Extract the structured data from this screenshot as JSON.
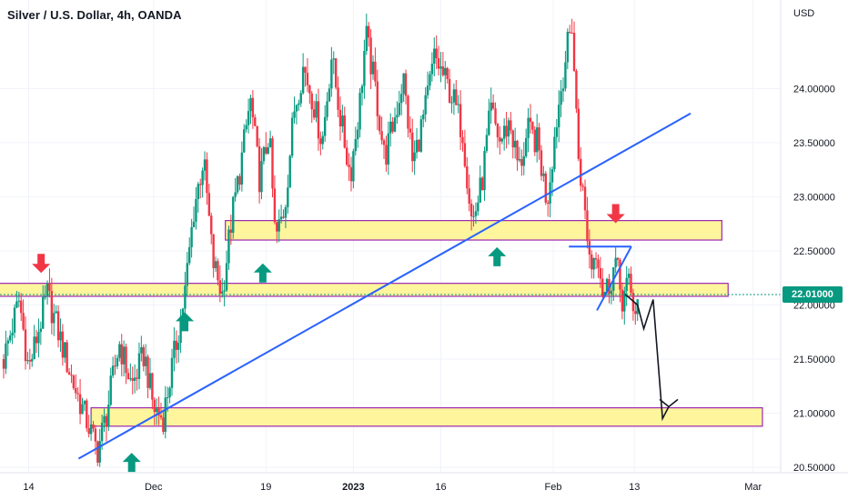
{
  "header": {
    "title": "Silver / U.S. Dollar, 4h, OANDA",
    "currency": "USD"
  },
  "price_tag": "22.01000",
  "chart_data": {
    "type": "candlestick",
    "title": "Silver / U.S. Dollar, 4h, OANDA",
    "ylabel": "USD",
    "ylim": [
      20.45,
      24.65
    ],
    "y_ticks": [
      "24.00000",
      "23.50000",
      "23.00000",
      "22.50000",
      "22.00000",
      "21.50000",
      "21.00000",
      "20.50000"
    ],
    "y_tick_values": [
      24.0,
      23.5,
      23.0,
      22.5,
      22.0,
      21.5,
      21.0,
      20.5
    ],
    "x_ticks": [
      "14",
      "Dec",
      "19",
      "2023",
      "16",
      "Feb",
      "13",
      "Mar"
    ],
    "current_price": 22.01,
    "colors": {
      "up": "#089981",
      "down": "#f23645",
      "trendline": "#2962ff",
      "zone": "#fff59d",
      "zone_border": "#9c27b0",
      "arrow_up": "#089981",
      "arrow_down": "#f23645"
    },
    "price_path": [
      [
        0,
        21.5
      ],
      [
        5,
        22.05
      ],
      [
        8,
        21.4
      ],
      [
        14,
        22.1
      ],
      [
        18,
        21.7
      ],
      [
        22,
        21.3
      ],
      [
        27,
        20.9
      ],
      [
        30,
        20.65
      ],
      [
        33,
        21.0
      ],
      [
        37,
        21.65
      ],
      [
        41,
        21.25
      ],
      [
        45,
        21.55
      ],
      [
        48,
        21.05
      ],
      [
        51,
        20.95
      ],
      [
        55,
        21.6
      ],
      [
        58,
        22.1
      ],
      [
        61,
        22.9
      ],
      [
        64,
        23.35
      ],
      [
        67,
        22.4
      ],
      [
        70,
        22.1
      ],
      [
        73,
        22.8
      ],
      [
        76,
        23.3
      ],
      [
        79,
        23.9
      ],
      [
        82,
        23.15
      ],
      [
        85,
        23.6
      ],
      [
        87,
        22.6
      ],
      [
        90,
        22.9
      ],
      [
        93,
        23.8
      ],
      [
        96,
        24.2
      ],
      [
        99,
        23.9
      ],
      [
        102,
        23.5
      ],
      [
        105,
        24.3
      ],
      [
        108,
        23.7
      ],
      [
        111,
        23.2
      ],
      [
        114,
        23.85
      ],
      [
        116,
        24.5
      ],
      [
        119,
        24.0
      ],
      [
        122,
        23.35
      ],
      [
        125,
        23.7
      ],
      [
        128,
        24.1
      ],
      [
        131,
        23.3
      ],
      [
        135,
        23.8
      ],
      [
        138,
        24.3
      ],
      [
        141,
        24.1
      ],
      [
        144,
        23.9
      ],
      [
        147,
        23.6
      ],
      [
        150,
        22.75
      ],
      [
        153,
        23.1
      ],
      [
        156,
        23.8
      ],
      [
        159,
        23.5
      ],
      [
        162,
        23.7
      ],
      [
        165,
        23.25
      ],
      [
        168,
        23.6
      ],
      [
        171,
        23.5
      ],
      [
        174,
        22.95
      ],
      [
        177,
        23.7
      ],
      [
        180,
        24.3
      ],
      [
        182,
        24.6
      ],
      [
        184,
        23.4
      ],
      [
        186,
        22.9
      ],
      [
        188,
        22.35
      ],
      [
        190,
        22.55
      ],
      [
        192,
        22.1
      ],
      [
        194,
        22.2
      ],
      [
        196,
        22.4
      ],
      [
        198,
        22.05
      ],
      [
        200,
        22.2
      ],
      [
        202,
        21.95
      ],
      [
        203,
        22.01
      ]
    ],
    "zones": [
      {
        "from_day": 71,
        "to_day": 230,
        "low": 22.6,
        "high": 22.78
      },
      {
        "from_day": -2,
        "to_day": 232,
        "low": 22.08,
        "high": 22.2
      },
      {
        "from_day": 28,
        "to_day": 243,
        "low": 20.88,
        "high": 21.05
      }
    ],
    "trendlines": [
      {
        "x1": 24,
        "y1": 20.58,
        "x2": 220,
        "y2": 23.77
      },
      {
        "x1": 181,
        "y1": 22.54,
        "x2": 201,
        "y2": 22.54
      },
      {
        "x1": 190,
        "y1": 21.95,
        "x2": 201,
        "y2": 22.54
      }
    ],
    "arrows": [
      {
        "dir": "down",
        "day": 12,
        "price": 22.38
      },
      {
        "dir": "down",
        "day": 196,
        "price": 22.84
      },
      {
        "dir": "up",
        "day": 83,
        "price": 22.3
      },
      {
        "dir": "up",
        "day": 58,
        "price": 21.85
      },
      {
        "dir": "up",
        "day": 41,
        "price": 20.55
      },
      {
        "dir": "up",
        "day": 158,
        "price": 22.45
      }
    ],
    "projection": [
      [
        199,
        22.1
      ],
      [
        203,
        22.0
      ],
      [
        205,
        21.78
      ],
      [
        208,
        22.05
      ],
      [
        211,
        20.95
      ],
      [
        213,
        21.06
      ]
    ]
  }
}
